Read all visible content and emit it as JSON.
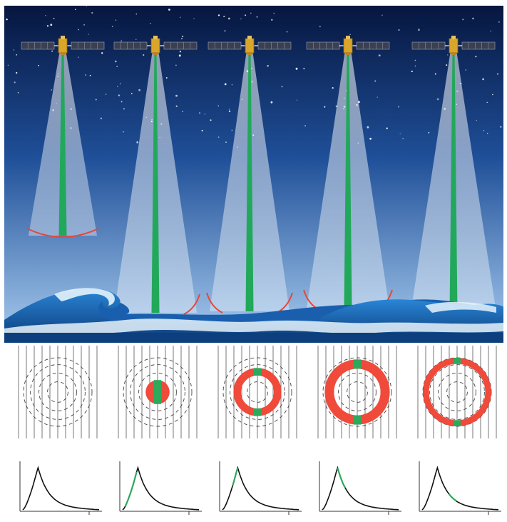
{
  "colors": {
    "sky_top": "#06163f",
    "sky_mid": "#2a64b0",
    "sky_bottom": "#a9cdf0",
    "beam": "#dbe8f6",
    "nadir_beam": "#22a85a",
    "footprint": "#e8453a",
    "ring_red": "#ef4a3a",
    "ring_green": "#2fa85c",
    "wave_dark": "#0d3f7c",
    "wave_mid": "#1f73c4",
    "foam": "#e6f3fb",
    "line": "#333333"
  },
  "satellites": [
    {
      "id": 1,
      "icon": "satellite-icon"
    },
    {
      "id": 2,
      "icon": "satellite-icon"
    },
    {
      "id": 3,
      "icon": "satellite-icon"
    },
    {
      "id": 4,
      "icon": "satellite-icon"
    },
    {
      "id": 5,
      "icon": "satellite-icon"
    }
  ],
  "panels": [
    {
      "stage": 1,
      "ring_inner_fraction": 0.0,
      "ring_outer_fraction": 0.0,
      "waveform_highlight": "none"
    },
    {
      "stage": 2,
      "ring_inner_fraction": 0.0,
      "ring_outer_fraction": 0.35,
      "waveform_highlight": "leading-edge"
    },
    {
      "stage": 3,
      "ring_inner_fraction": 0.48,
      "ring_outer_fraction": 0.7,
      "waveform_highlight": "leading-edge-top"
    },
    {
      "stage": 4,
      "ring_inner_fraction": 0.68,
      "ring_outer_fraction": 0.95,
      "waveform_highlight": "peak-tail"
    },
    {
      "stage": 5,
      "ring_inner_fraction": 0.82,
      "ring_outer_fraction": 1.0,
      "waveform_highlight": "tail"
    }
  ]
}
